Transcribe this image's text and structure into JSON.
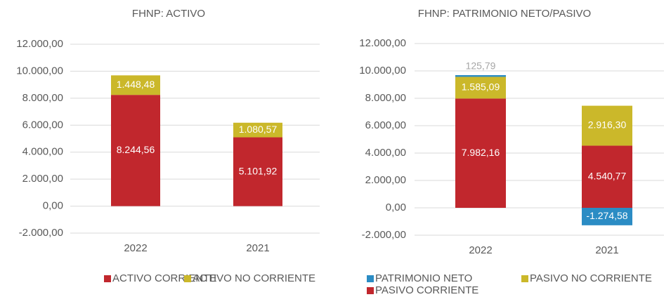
{
  "chart_data": [
    {
      "type": "bar",
      "stacked": true,
      "title": "FHNP: ACTIVO",
      "categories": [
        "2022",
        "2021"
      ],
      "series": [
        {
          "name": "ACTIVO CORRIENTE",
          "color": "#c1272d",
          "values": [
            8244.56,
            5101.92
          ],
          "value_labels": [
            "8.244,56",
            "5.101,92"
          ]
        },
        {
          "name": "ACTIVO NO CORRIENTE",
          "color": "#cbb82a",
          "values": [
            1448.48,
            1080.57
          ],
          "value_labels": [
            "1.448,48",
            "1.080,57"
          ]
        }
      ],
      "ylim": [
        -2000,
        12000
      ],
      "yticks": [
        {
          "value": -2000,
          "label": "-2.000,00"
        },
        {
          "value": 0,
          "label": "0,00"
        },
        {
          "value": 2000,
          "label": "2.000,00"
        },
        {
          "value": 4000,
          "label": "4.000,00"
        },
        {
          "value": 6000,
          "label": "6.000,00"
        },
        {
          "value": 8000,
          "label": "8.000,00"
        },
        {
          "value": 10000,
          "label": "10.000,00"
        },
        {
          "value": 12000,
          "label": "12.000,00"
        }
      ],
      "grid": true,
      "legend": "bottom"
    },
    {
      "type": "bar",
      "stacked": true,
      "title": "FHNP: PATRIMONIO NETO/PASIVO",
      "categories": [
        "2022",
        "2021"
      ],
      "series": [
        {
          "name": "PATRIMONIO NETO",
          "color": "#2b8cc4",
          "values": [
            125.79,
            -1274.58
          ],
          "value_labels": [
            "125,79",
            "-1.274,58"
          ]
        },
        {
          "name": "PASIVO NO CORRIENTE",
          "color": "#cbb82a",
          "values": [
            1585.09,
            2916.3
          ],
          "value_labels": [
            "1.585,09",
            "2.916,30"
          ]
        },
        {
          "name": "PASIVO CORRIENTE",
          "color": "#c1272d",
          "values": [
            7982.16,
            4540.77
          ],
          "value_labels": [
            "7.982,16",
            "4.540,77"
          ]
        }
      ],
      "legend_reversed": true,
      "ylim": [
        -2000,
        12000
      ],
      "yticks": [
        {
          "value": -2000,
          "label": "-2.000,00"
        },
        {
          "value": 0,
          "label": "0,00"
        },
        {
          "value": 2000,
          "label": "2.000,00"
        },
        {
          "value": 4000,
          "label": "4.000,00"
        },
        {
          "value": 6000,
          "label": "6.000,00"
        },
        {
          "value": 8000,
          "label": "8.000,00"
        },
        {
          "value": 10000,
          "label": "10.000,00"
        },
        {
          "value": 12000,
          "label": "12.000,00"
        }
      ],
      "grid": true,
      "legend": "bottom"
    }
  ]
}
